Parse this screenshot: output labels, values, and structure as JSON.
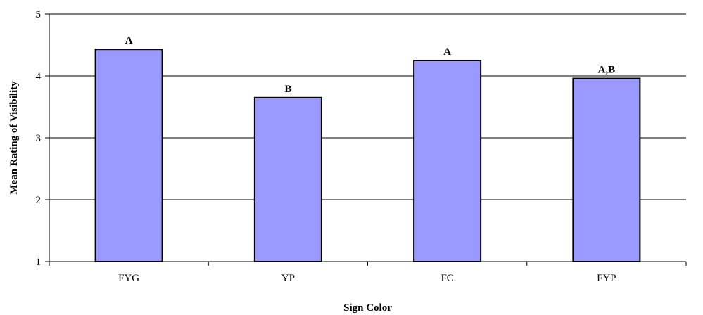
{
  "chart_data": {
    "type": "bar",
    "categories": [
      "FYG",
      "YP",
      "FC",
      "FYP"
    ],
    "values": [
      4.43,
      3.65,
      4.25,
      3.96
    ],
    "bar_labels": [
      "A",
      "B",
      "A",
      "A,B"
    ],
    "xlabel": "Sign Color",
    "ylabel": "Mean Rating of Visibility",
    "ylim": [
      1,
      5
    ],
    "yticks": [
      1,
      2,
      3,
      4,
      5
    ],
    "grid": true,
    "bar_color": "#9999ff",
    "bar_edge_color": "#000000"
  }
}
